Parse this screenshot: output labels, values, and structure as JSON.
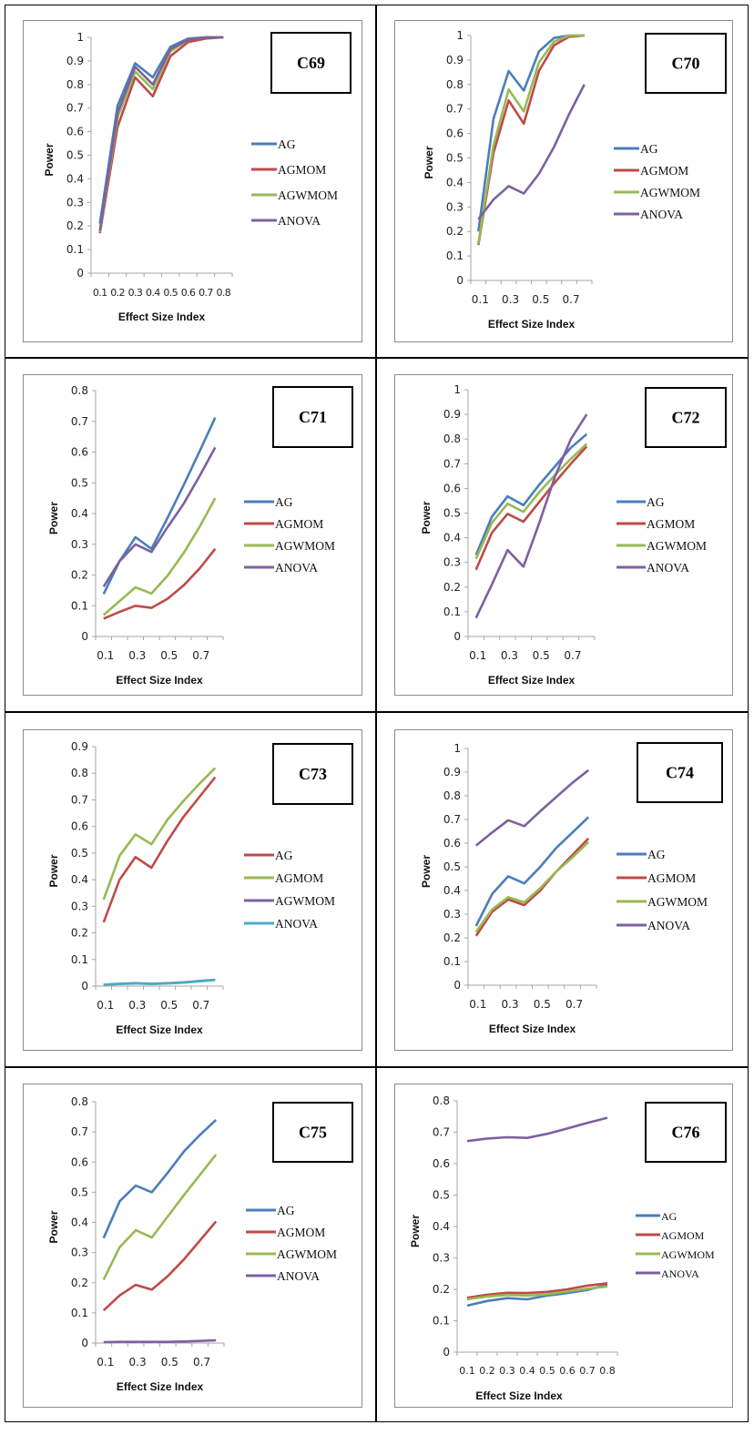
{
  "chart_data": [
    {
      "type": "line",
      "title": "C69",
      "xlabel": "Effect Size Index",
      "ylabel": "Power",
      "x": [
        0.1,
        0.2,
        0.3,
        0.4,
        0.5,
        0.6,
        0.7,
        0.8
      ],
      "xtick_labels": [
        "0.1",
        "0.2",
        "0.3",
        "0.4",
        "0.5",
        "0.6",
        "0.7",
        "0.8"
      ],
      "xtick_style": "compact",
      "yticks": [
        "0",
        "0.1",
        "0.2",
        "0.3",
        "0.4",
        "0.5",
        "0.6",
        "0.7",
        "0.8",
        "0.9",
        "1"
      ],
      "ylim": [
        0,
        1
      ],
      "grid": false,
      "legend_position": "right",
      "series": [
        {
          "name": "AG",
          "color": "#4a7ebb",
          "values": [
            0.21,
            0.71,
            0.89,
            0.83,
            0.96,
            0.995,
            1.0,
            1.0
          ]
        },
        {
          "name": "AGMOM",
          "color": "#be4b48",
          "values": [
            0.17,
            0.62,
            0.83,
            0.75,
            0.92,
            0.98,
            0.995,
            1.0
          ]
        },
        {
          "name": "AGWMOM",
          "color": "#98b954",
          "values": [
            0.175,
            0.66,
            0.855,
            0.78,
            0.94,
            0.99,
            1.0,
            1.0
          ]
        },
        {
          "name": "ANOVA",
          "color": "#7d60a0",
          "values": [
            0.18,
            0.68,
            0.875,
            0.8,
            0.95,
            0.99,
            1.0,
            1.0
          ]
        }
      ]
    },
    {
      "type": "line",
      "title": "C70",
      "xlabel": "Effect Size Index",
      "ylabel": "Power",
      "x": [
        0.1,
        0.2,
        0.3,
        0.4,
        0.5,
        0.6,
        0.7,
        0.8
      ],
      "xtick_labels": [
        "0.1",
        "0.3",
        "0.5",
        "0.7"
      ],
      "yticks": [
        "0",
        "0.1",
        "0.2",
        "0.3",
        "0.4",
        "0.5",
        "0.6",
        "0.7",
        "0.8",
        "0.9",
        "1"
      ],
      "ylim": [
        0,
        1
      ],
      "grid": false,
      "legend_position": "right",
      "series": [
        {
          "name": "AG",
          "color": "#4a7ebb",
          "values": [
            0.2,
            0.66,
            0.855,
            0.775,
            0.935,
            0.99,
            1.0,
            1.0
          ]
        },
        {
          "name": "AGMOM",
          "color": "#be4b48",
          "values": [
            0.145,
            0.52,
            0.735,
            0.64,
            0.855,
            0.96,
            0.995,
            1.0
          ]
        },
        {
          "name": "AGWMOM",
          "color": "#98b954",
          "values": [
            0.15,
            0.55,
            0.78,
            0.69,
            0.89,
            0.975,
            1.0,
            1.0
          ]
        },
        {
          "name": "ANOVA",
          "color": "#7d60a0",
          "values": [
            0.25,
            0.33,
            0.385,
            0.355,
            0.435,
            0.545,
            0.68,
            0.8
          ]
        }
      ]
    },
    {
      "type": "line",
      "title": "C71",
      "xlabel": "Effect Size Index",
      "ylabel": "Power",
      "x": [
        0.1,
        0.2,
        0.3,
        0.4,
        0.5,
        0.6,
        0.7,
        0.8
      ],
      "xtick_labels": [
        "0.1",
        "0.3",
        "0.5",
        "0.7"
      ],
      "yticks": [
        "0",
        "0.1",
        "0.2",
        "0.3",
        "0.4",
        "0.5",
        "0.6",
        "0.7",
        "0.8"
      ],
      "ylim": [
        0,
        0.8
      ],
      "grid": false,
      "legend_position": "right",
      "series": [
        {
          "name": "AG",
          "color": "#4a7ebb",
          "values": [
            0.138,
            0.245,
            0.323,
            0.285,
            0.385,
            0.49,
            0.6,
            0.712
          ]
        },
        {
          "name": "AGMOM",
          "color": "#be4b48",
          "values": [
            0.058,
            0.08,
            0.1,
            0.093,
            0.122,
            0.165,
            0.22,
            0.285
          ]
        },
        {
          "name": "AGWMOM",
          "color": "#98b954",
          "values": [
            0.07,
            0.115,
            0.16,
            0.14,
            0.197,
            0.27,
            0.355,
            0.45
          ]
        },
        {
          "name": "ANOVA",
          "color": "#7d60a0",
          "values": [
            0.162,
            0.245,
            0.3,
            0.275,
            0.355,
            0.43,
            0.52,
            0.615
          ]
        }
      ]
    },
    {
      "type": "line",
      "title": "C72",
      "xlabel": "Effect Size Index",
      "ylabel": "Power",
      "x": [
        0.1,
        0.2,
        0.3,
        0.4,
        0.5,
        0.6,
        0.7,
        0.8
      ],
      "xtick_labels": [
        "0.1",
        "0.3",
        "0.5",
        "0.7"
      ],
      "yticks": [
        "0",
        "0.1",
        "0.2",
        "0.3",
        "0.4",
        "0.5",
        "0.6",
        "0.7",
        "0.8",
        "0.9",
        "1"
      ],
      "ylim": [
        0,
        1
      ],
      "grid": false,
      "legend_position": "right",
      "series": [
        {
          "name": "AG",
          "color": "#4a7ebb",
          "values": [
            0.33,
            0.485,
            0.568,
            0.532,
            0.615,
            0.69,
            0.765,
            0.82
          ]
        },
        {
          "name": "AGMOM",
          "color": "#be4b48",
          "values": [
            0.27,
            0.42,
            0.497,
            0.465,
            0.545,
            0.625,
            0.7,
            0.77
          ]
        },
        {
          "name": "AGWMOM",
          "color": "#98b954",
          "values": [
            0.315,
            0.46,
            0.538,
            0.505,
            0.585,
            0.655,
            0.72,
            0.78
          ]
        },
        {
          "name": "ANOVA",
          "color": "#7d60a0",
          "values": [
            0.075,
            0.21,
            0.35,
            0.283,
            0.46,
            0.65,
            0.8,
            0.9
          ]
        }
      ]
    },
    {
      "type": "line",
      "title": "C73",
      "xlabel": "Effect Size Index",
      "ylabel": "Power",
      "x": [
        0.1,
        0.2,
        0.3,
        0.4,
        0.5,
        0.6,
        0.7,
        0.8
      ],
      "xtick_labels": [
        "0.1",
        "0.3",
        "0.5",
        "0.7"
      ],
      "yticks": [
        "0",
        "0.1",
        "0.2",
        "0.3",
        "0.4",
        "0.5",
        "0.6",
        "0.7",
        "0.8",
        "0.9"
      ],
      "ylim": [
        0,
        0.9
      ],
      "grid": false,
      "legend_position": "right",
      "series": [
        {
          "name": "AG",
          "color": "#be4b48",
          "values": [
            0.24,
            0.4,
            0.485,
            0.445,
            0.545,
            0.635,
            0.71,
            0.785
          ]
        },
        {
          "name": "AGMOM",
          "color": "#98b954",
          "values": [
            0.325,
            0.49,
            0.57,
            0.533,
            0.625,
            0.695,
            0.76,
            0.82
          ]
        },
        {
          "name": "AGWMOM",
          "color": "#7d60a0",
          "values": [
            0.005,
            0.009,
            0.011,
            0.009,
            0.011,
            0.014,
            0.019,
            0.024
          ]
        },
        {
          "name": "ANOVA",
          "color": "#4bacc6",
          "values": [
            0.005,
            0.008,
            0.01,
            0.008,
            0.01,
            0.013,
            0.018,
            0.023
          ]
        }
      ]
    },
    {
      "type": "line",
      "title": "C74",
      "xlabel": "Effect Size Index",
      "ylabel": "Power",
      "x": [
        0.1,
        0.2,
        0.3,
        0.4,
        0.5,
        0.6,
        0.7,
        0.8
      ],
      "xtick_labels": [
        "0.1",
        "0.3",
        "0.5",
        "0.7"
      ],
      "yticks": [
        "0",
        "0.1",
        "0.2",
        "0.3",
        "0.4",
        "0.5",
        "0.6",
        "0.7",
        "0.8",
        "0.9",
        "1"
      ],
      "ylim": [
        0,
        1
      ],
      "grid": false,
      "legend_position": "right",
      "series": [
        {
          "name": "AG",
          "color": "#4a7ebb",
          "values": [
            0.25,
            0.385,
            0.46,
            0.43,
            0.5,
            0.58,
            0.645,
            0.71
          ]
        },
        {
          "name": "AGMOM",
          "color": "#be4b48",
          "values": [
            0.208,
            0.31,
            0.362,
            0.338,
            0.4,
            0.48,
            0.55,
            0.62
          ]
        },
        {
          "name": "AGWMOM",
          "color": "#98b954",
          "values": [
            0.225,
            0.32,
            0.372,
            0.35,
            0.41,
            0.48,
            0.54,
            0.605
          ]
        },
        {
          "name": "ANOVA",
          "color": "#7d60a0",
          "values": [
            0.59,
            0.645,
            0.697,
            0.672,
            0.735,
            0.795,
            0.855,
            0.908
          ]
        }
      ]
    },
    {
      "type": "line",
      "title": "C75",
      "xlabel": "Effect Size Index",
      "ylabel": "Power",
      "x": [
        0.1,
        0.2,
        0.3,
        0.4,
        0.5,
        0.6,
        0.7,
        0.8
      ],
      "xtick_labels": [
        "0.1",
        "0.3",
        "0.5",
        "0.7"
      ],
      "yticks": [
        "0",
        "0.1",
        "0.2",
        "0.3",
        "0.4",
        "0.5",
        "0.6",
        "0.7",
        "0.8"
      ],
      "ylim": [
        0,
        0.8
      ],
      "grid": false,
      "legend_position": "right",
      "series": [
        {
          "name": "AG",
          "color": "#4a7ebb",
          "values": [
            0.348,
            0.47,
            0.522,
            0.5,
            0.565,
            0.635,
            0.69,
            0.74
          ]
        },
        {
          "name": "AGMOM",
          "color": "#be4b48",
          "values": [
            0.108,
            0.158,
            0.193,
            0.177,
            0.222,
            0.277,
            0.34,
            0.403
          ]
        },
        {
          "name": "AGWMOM",
          "color": "#98b954",
          "values": [
            0.21,
            0.318,
            0.374,
            0.35,
            0.42,
            0.49,
            0.558,
            0.625
          ]
        },
        {
          "name": "ANOVA",
          "color": "#7d60a0",
          "values": [
            0.003,
            0.004,
            0.004,
            0.004,
            0.004,
            0.005,
            0.007,
            0.009
          ]
        }
      ]
    },
    {
      "type": "line",
      "title": "C76",
      "xlabel": "Effect Size Index",
      "ylabel": "Power",
      "x": [
        0.1,
        0.2,
        0.3,
        0.4,
        0.5,
        0.6,
        0.7,
        0.8
      ],
      "xtick_labels": [
        "0.1",
        "0.2",
        "0.3",
        "0.4",
        "0.5",
        "0.6",
        "0.7",
        "0.8"
      ],
      "yticks": [
        "0",
        "0.1",
        "0.2",
        "0.3",
        "0.4",
        "0.5",
        "0.6",
        "0.7",
        "0.8"
      ],
      "ylim": [
        0,
        0.8
      ],
      "grid": false,
      "legend_position": "right",
      "series": [
        {
          "name": "AG",
          "color": "#4a7ebb",
          "values": [
            0.148,
            0.163,
            0.172,
            0.168,
            0.18,
            0.188,
            0.198,
            0.215
          ]
        },
        {
          "name": "AGMOM",
          "color": "#be4b48",
          "values": [
            0.173,
            0.183,
            0.189,
            0.188,
            0.192,
            0.2,
            0.212,
            0.219
          ]
        },
        {
          "name": "AGWMOM",
          "color": "#98b954",
          "values": [
            0.168,
            0.177,
            0.182,
            0.18,
            0.184,
            0.193,
            0.202,
            0.209
          ]
        },
        {
          "name": "ANOVA",
          "color": "#7d60a0",
          "values": [
            0.672,
            0.68,
            0.684,
            0.682,
            0.695,
            0.712,
            0.73,
            0.746
          ]
        }
      ]
    }
  ]
}
